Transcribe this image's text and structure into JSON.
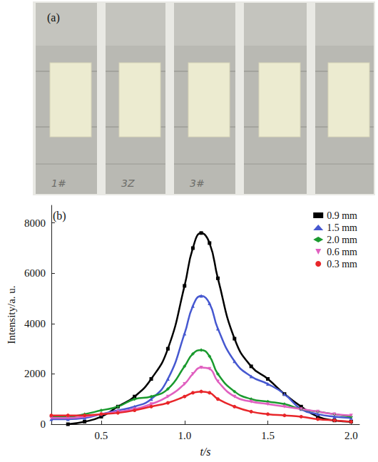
{
  "photo": {
    "label": "(a)",
    "handwriting": [
      "1#",
      "3Z",
      "3#"
    ]
  },
  "chart_data": {
    "type": "line",
    "panel": "(b)",
    "x_label": "t/s",
    "y_label": "Intensity/a. u.",
    "xlim": [
      0.2,
      2.05
    ],
    "xticks": [
      0.5,
      {
        "value": 1,
        "label": "1.0"
      },
      1.5,
      {
        "value": 2,
        "label": "2.0"
      }
    ],
    "ylim": [
      0,
      8700
    ],
    "yticks": [
      0,
      2000,
      4000,
      6000,
      8000
    ],
    "grid": false,
    "legend": "upper right",
    "x": [
      0.2,
      0.3,
      0.4,
      0.5,
      0.6,
      0.7,
      0.8,
      0.9,
      1.0,
      1.05,
      1.1,
      1.15,
      1.2,
      1.3,
      1.4,
      1.5,
      1.6,
      1.7,
      1.8,
      1.9,
      2.0
    ],
    "series": [
      {
        "name": "0.9 mm",
        "color": "#000000",
        "marker": "square",
        "values": [
          null,
          0,
          100,
          300,
          700,
          1100,
          1800,
          3000,
          5500,
          7000,
          7600,
          7200,
          5800,
          3400,
          2300,
          1800,
          1200,
          700,
          300,
          150,
          100
        ]
      },
      {
        "name": "1.5 mm",
        "color": "#4658d0",
        "marker": "triangle",
        "values": [
          200,
          200,
          250,
          400,
          550,
          700,
          1000,
          1800,
          3600,
          4700,
          5100,
          4800,
          3800,
          2500,
          1900,
          1600,
          1200,
          600,
          400,
          300,
          250
        ]
      },
      {
        "name": "2.0 mm",
        "color": "#1a9a2e",
        "marker": "diamond",
        "values": [
          300,
          300,
          400,
          550,
          700,
          1000,
          1100,
          1400,
          2300,
          2800,
          2950,
          2700,
          2000,
          1300,
          1000,
          900,
          800,
          600,
          500,
          400,
          300
        ]
      },
      {
        "name": "0.6 mm",
        "color": "#e060c0",
        "marker": "triangle-down",
        "values": [
          250,
          250,
          300,
          400,
          500,
          600,
          800,
          1100,
          1600,
          2000,
          2250,
          2200,
          1700,
          1100,
          900,
          800,
          700,
          600,
          500,
          400,
          350
        ]
      },
      {
        "name": "0.3 mm",
        "color": "#e8262a",
        "marker": "circle",
        "values": [
          350,
          350,
          350,
          400,
          450,
          550,
          700,
          850,
          1100,
          1250,
          1300,
          1250,
          1000,
          700,
          500,
          400,
          350,
          300,
          200,
          150,
          100
        ]
      }
    ]
  }
}
